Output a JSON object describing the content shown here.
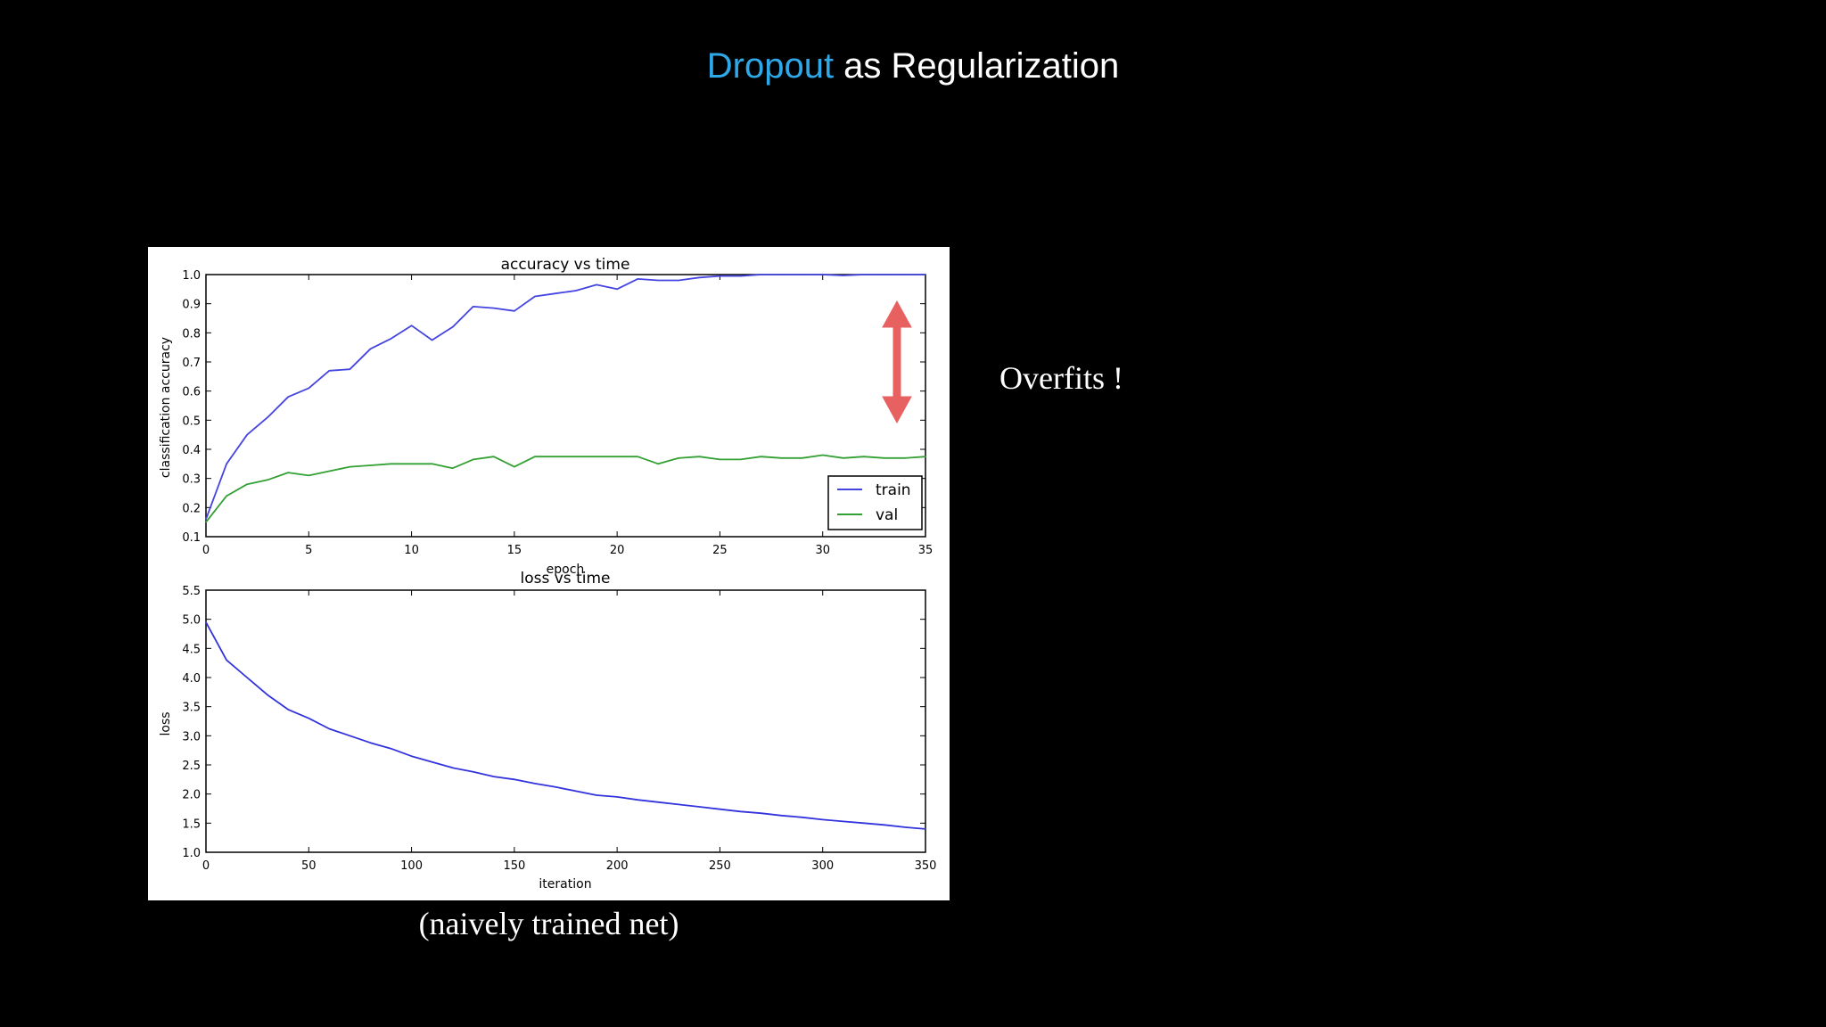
{
  "slide": {
    "title_highlight": "Dropout",
    "title_rest": " as Regularization",
    "note": "Overfits !",
    "caption": "(naively trained net)",
    "accent_color": "#2ea8e6",
    "annotation_color": "#e65050"
  },
  "chart_data": [
    {
      "type": "line",
      "title": "accuracy vs time",
      "xlabel": "epoch",
      "ylabel": "classification accuracy",
      "xlim": [
        0,
        35
      ],
      "ylim": [
        0.1,
        1.0
      ],
      "xticks": [
        0,
        5,
        10,
        15,
        20,
        25,
        30,
        35
      ],
      "yticks": [
        0.1,
        0.2,
        0.3,
        0.4,
        0.5,
        0.6,
        0.7,
        0.8,
        0.9,
        1.0
      ],
      "legend": "lower-right",
      "grid": false,
      "series": [
        {
          "name": "train",
          "color": "#4444e0",
          "x": [
            0,
            1,
            2,
            3,
            4,
            5,
            6,
            7,
            8,
            9,
            10,
            11,
            12,
            13,
            14,
            15,
            16,
            17,
            18,
            19,
            20,
            21,
            22,
            23,
            24,
            25,
            26,
            27,
            28,
            29,
            30,
            31,
            32,
            33,
            34,
            35
          ],
          "y": [
            0.16,
            0.35,
            0.45,
            0.51,
            0.58,
            0.61,
            0.67,
            0.675,
            0.745,
            0.78,
            0.825,
            0.775,
            0.82,
            0.89,
            0.885,
            0.875,
            0.925,
            0.935,
            0.945,
            0.965,
            0.95,
            0.985,
            0.98,
            0.98,
            0.99,
            0.995,
            0.995,
            1.0,
            1.0,
            1.0,
            1.0,
            0.997,
            1.0,
            1.0,
            1.0,
            1.0
          ]
        },
        {
          "name": "val",
          "color": "#33a033",
          "x": [
            0,
            1,
            2,
            3,
            4,
            5,
            6,
            7,
            8,
            9,
            10,
            11,
            12,
            13,
            14,
            15,
            16,
            17,
            18,
            19,
            20,
            21,
            22,
            23,
            24,
            25,
            26,
            27,
            28,
            29,
            30,
            31,
            32,
            33,
            34,
            35
          ],
          "y": [
            0.15,
            0.24,
            0.28,
            0.295,
            0.32,
            0.31,
            0.325,
            0.34,
            0.345,
            0.35,
            0.35,
            0.35,
            0.335,
            0.365,
            0.375,
            0.34,
            0.375,
            0.375,
            0.375,
            0.375,
            0.375,
            0.375,
            0.35,
            0.37,
            0.375,
            0.365,
            0.365,
            0.375,
            0.37,
            0.37,
            0.38,
            0.37,
            0.375,
            0.37,
            0.37,
            0.375
          ]
        }
      ]
    },
    {
      "type": "line",
      "title": "loss vs time",
      "xlabel": "iteration",
      "ylabel": "loss",
      "xlim": [
        0,
        350
      ],
      "ylim": [
        1.0,
        5.5
      ],
      "xticks": [
        0,
        50,
        100,
        150,
        200,
        250,
        300,
        350
      ],
      "yticks": [
        1.0,
        1.5,
        2.0,
        2.5,
        3.0,
        3.5,
        4.0,
        4.5,
        5.0,
        5.5
      ],
      "grid": false,
      "series": [
        {
          "color": "#3333dd",
          "x": [
            0,
            10,
            20,
            30,
            40,
            50,
            60,
            70,
            80,
            90,
            100,
            110,
            120,
            130,
            140,
            150,
            160,
            170,
            180,
            190,
            200,
            210,
            220,
            230,
            240,
            250,
            260,
            270,
            280,
            290,
            300,
            310,
            320,
            330,
            340,
            350
          ],
          "y": [
            4.95,
            4.3,
            4.0,
            3.7,
            3.45,
            3.3,
            3.12,
            3.0,
            2.88,
            2.78,
            2.65,
            2.55,
            2.45,
            2.38,
            2.3,
            2.25,
            2.18,
            2.12,
            2.05,
            1.98,
            1.95,
            1.9,
            1.86,
            1.82,
            1.78,
            1.74,
            1.7,
            1.67,
            1.63,
            1.6,
            1.56,
            1.53,
            1.5,
            1.47,
            1.43,
            1.4
          ]
        }
      ]
    }
  ]
}
